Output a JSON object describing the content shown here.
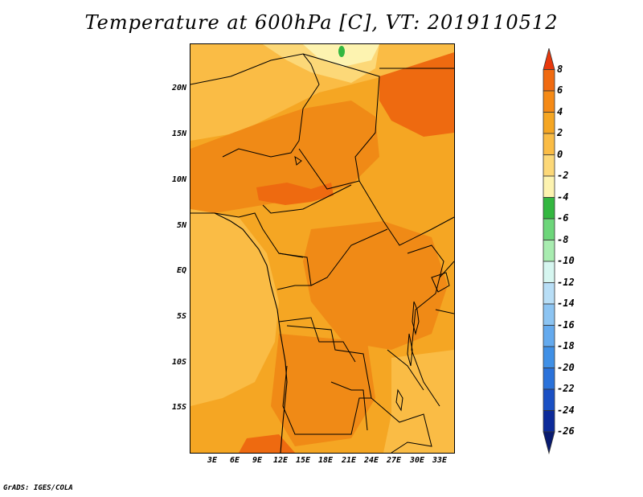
{
  "title": "Temperature at 600hPa [C], VT: 2019110512",
  "credit": "GrADS: IGES/COLA",
  "y_axis_labels": [
    "20N",
    "15N",
    "10N",
    "5N",
    "EQ",
    "5S",
    "10S",
    "15S"
  ],
  "x_axis_labels": [
    "3E",
    "6E",
    "9E",
    "12E",
    "15E",
    "18E",
    "21E",
    "24E",
    "27E",
    "30E",
    "33E"
  ],
  "colorbar": {
    "labels": [
      "8",
      "6",
      "4",
      "2",
      "0",
      "-2",
      "-4",
      "-6",
      "-8",
      "-10",
      "-12",
      "-14",
      "-16",
      "-18",
      "-20",
      "-22",
      "-24",
      "-26"
    ],
    "colors": [
      "#e8380c",
      "#f06a10",
      "#f58a16",
      "#f5a623",
      "#fabc45",
      "#fcd878",
      "#fdf3b0",
      "#33b740",
      "#6dd67a",
      "#a8ecb0",
      "#d6f6f0",
      "#b8def6",
      "#8cc4f2",
      "#64aaee",
      "#4090e6",
      "#2a72da",
      "#1a50c4",
      "#0c2a9a",
      "#081a70"
    ]
  },
  "colors": {
    "base": "#f5a623",
    "warm": "#f08a16",
    "hot": "#ee6a10",
    "cool": "#fabc45",
    "pale": "#fcd878",
    "green": "#33b740"
  }
}
